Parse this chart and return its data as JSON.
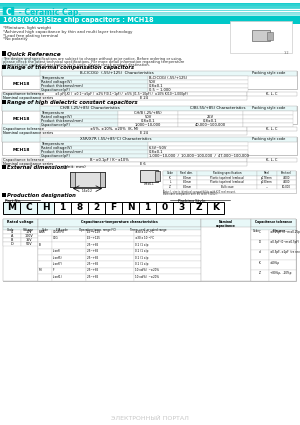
{
  "title_brand_c": "C",
  "title_brand_rest": " - Ceramic Cap.",
  "title_product": "1608(0603)Size chip capacitors : MCH18",
  "features": [
    "*Miniature, light weight",
    "*Achieved high capacitance by thin and multi layer technology",
    "*Lead free plating terminal",
    "*No polarity"
  ],
  "quick_ref_title": "Quick Reference",
  "quick_ref_lines": [
    "The design and specifications are subject to change without prior notice. Before ordering or using,",
    "please check the latest technical specifications. For more detail information regarding temperature",
    "characteristic code and packaging style code, please check product destination."
  ],
  "thermal_title": "Range of thermal compensation capacitors",
  "high_diel_title": "Range of high dielectric constant capacitors",
  "ext_dim_title": "External dimensions",
  "prod_desig_title": "Production designation",
  "cyan": "#00C8C8",
  "lcyan": "#E8F8F8",
  "white": "#FFFFFF",
  "black": "#000000",
  "gray_border": "#AAAAAA",
  "light_stripe": "#B0ECEC",
  "bg": "#FFFFFF",
  "part_chars": [
    "M",
    "C",
    "H",
    "1",
    "8",
    "2",
    "F",
    "N",
    "1",
    "0",
    "3",
    "Z",
    "K"
  ],
  "packing_rows": [
    [
      "K",
      "8.0mm",
      "Plastic tape/plastic reel (emboss, patch, mount)",
      "φ 178mm(7\")",
      "4,000"
    ],
    [
      "L",
      "8.0mm",
      "Plastic tape/plastic reel (emboss, patch, mount)",
      "φ 330mm(13\")",
      "4,000"
    ],
    [
      "Z",
      "8.0mm",
      "Bulk case",
      "---",
      "10,000"
    ]
  ]
}
